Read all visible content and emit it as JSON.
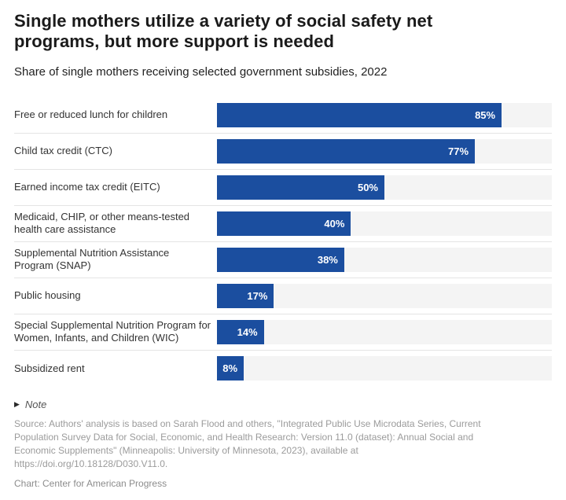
{
  "header": {
    "title": "Single mothers utilize a variety of social safety net programs, but more support is needed",
    "subtitle": "Share of single mothers receiving selected government subsidies, 2022"
  },
  "chart_data": {
    "type": "bar",
    "orientation": "horizontal",
    "title": "Single mothers utilize a variety of social safety net programs, but more support is needed",
    "subtitle": "Share of single mothers receiving selected government subsidies, 2022",
    "categories": [
      "Free or reduced lunch for children",
      "Child tax credit (CTC)",
      "Earned income tax credit (EITC)",
      "Medicaid, CHIP, or other means-tested health care assistance",
      "Supplemental Nutrition Assistance Program (SNAP)",
      "Public housing",
      "Special Supplemental Nutrition Program for Women, Infants, and Children (WIC)",
      "Subsidized rent"
    ],
    "values": [
      85,
      77,
      50,
      40,
      38,
      17,
      14,
      8
    ],
    "value_labels": [
      "85%",
      "77%",
      "50%",
      "40%",
      "38%",
      "17%",
      "14%",
      "8%"
    ],
    "unit": "%",
    "xlim": [
      0,
      100
    ],
    "grid": false,
    "legend": false,
    "bar_color": "#1b4e9f",
    "track_color": "#f4f4f4",
    "value_label_position": "inside-end",
    "value_label_color": "#ffffff"
  },
  "footer": {
    "note_toggle": "Note",
    "note_icon": "triangle-right-icon",
    "source": "Source: Authors' analysis is based on Sarah Flood and others, \"Integrated Public Use Microdata Series, Current Population Survey Data for Social, Economic, and Health Research: Version 11.0 (dataset): Annual Social and Economic Supplements\" (Minneapolis: University of Minnesota, 2023), available at https://doi.org/10.18128/D030.V11.0.",
    "credit": "Chart: Center for American Progress"
  }
}
